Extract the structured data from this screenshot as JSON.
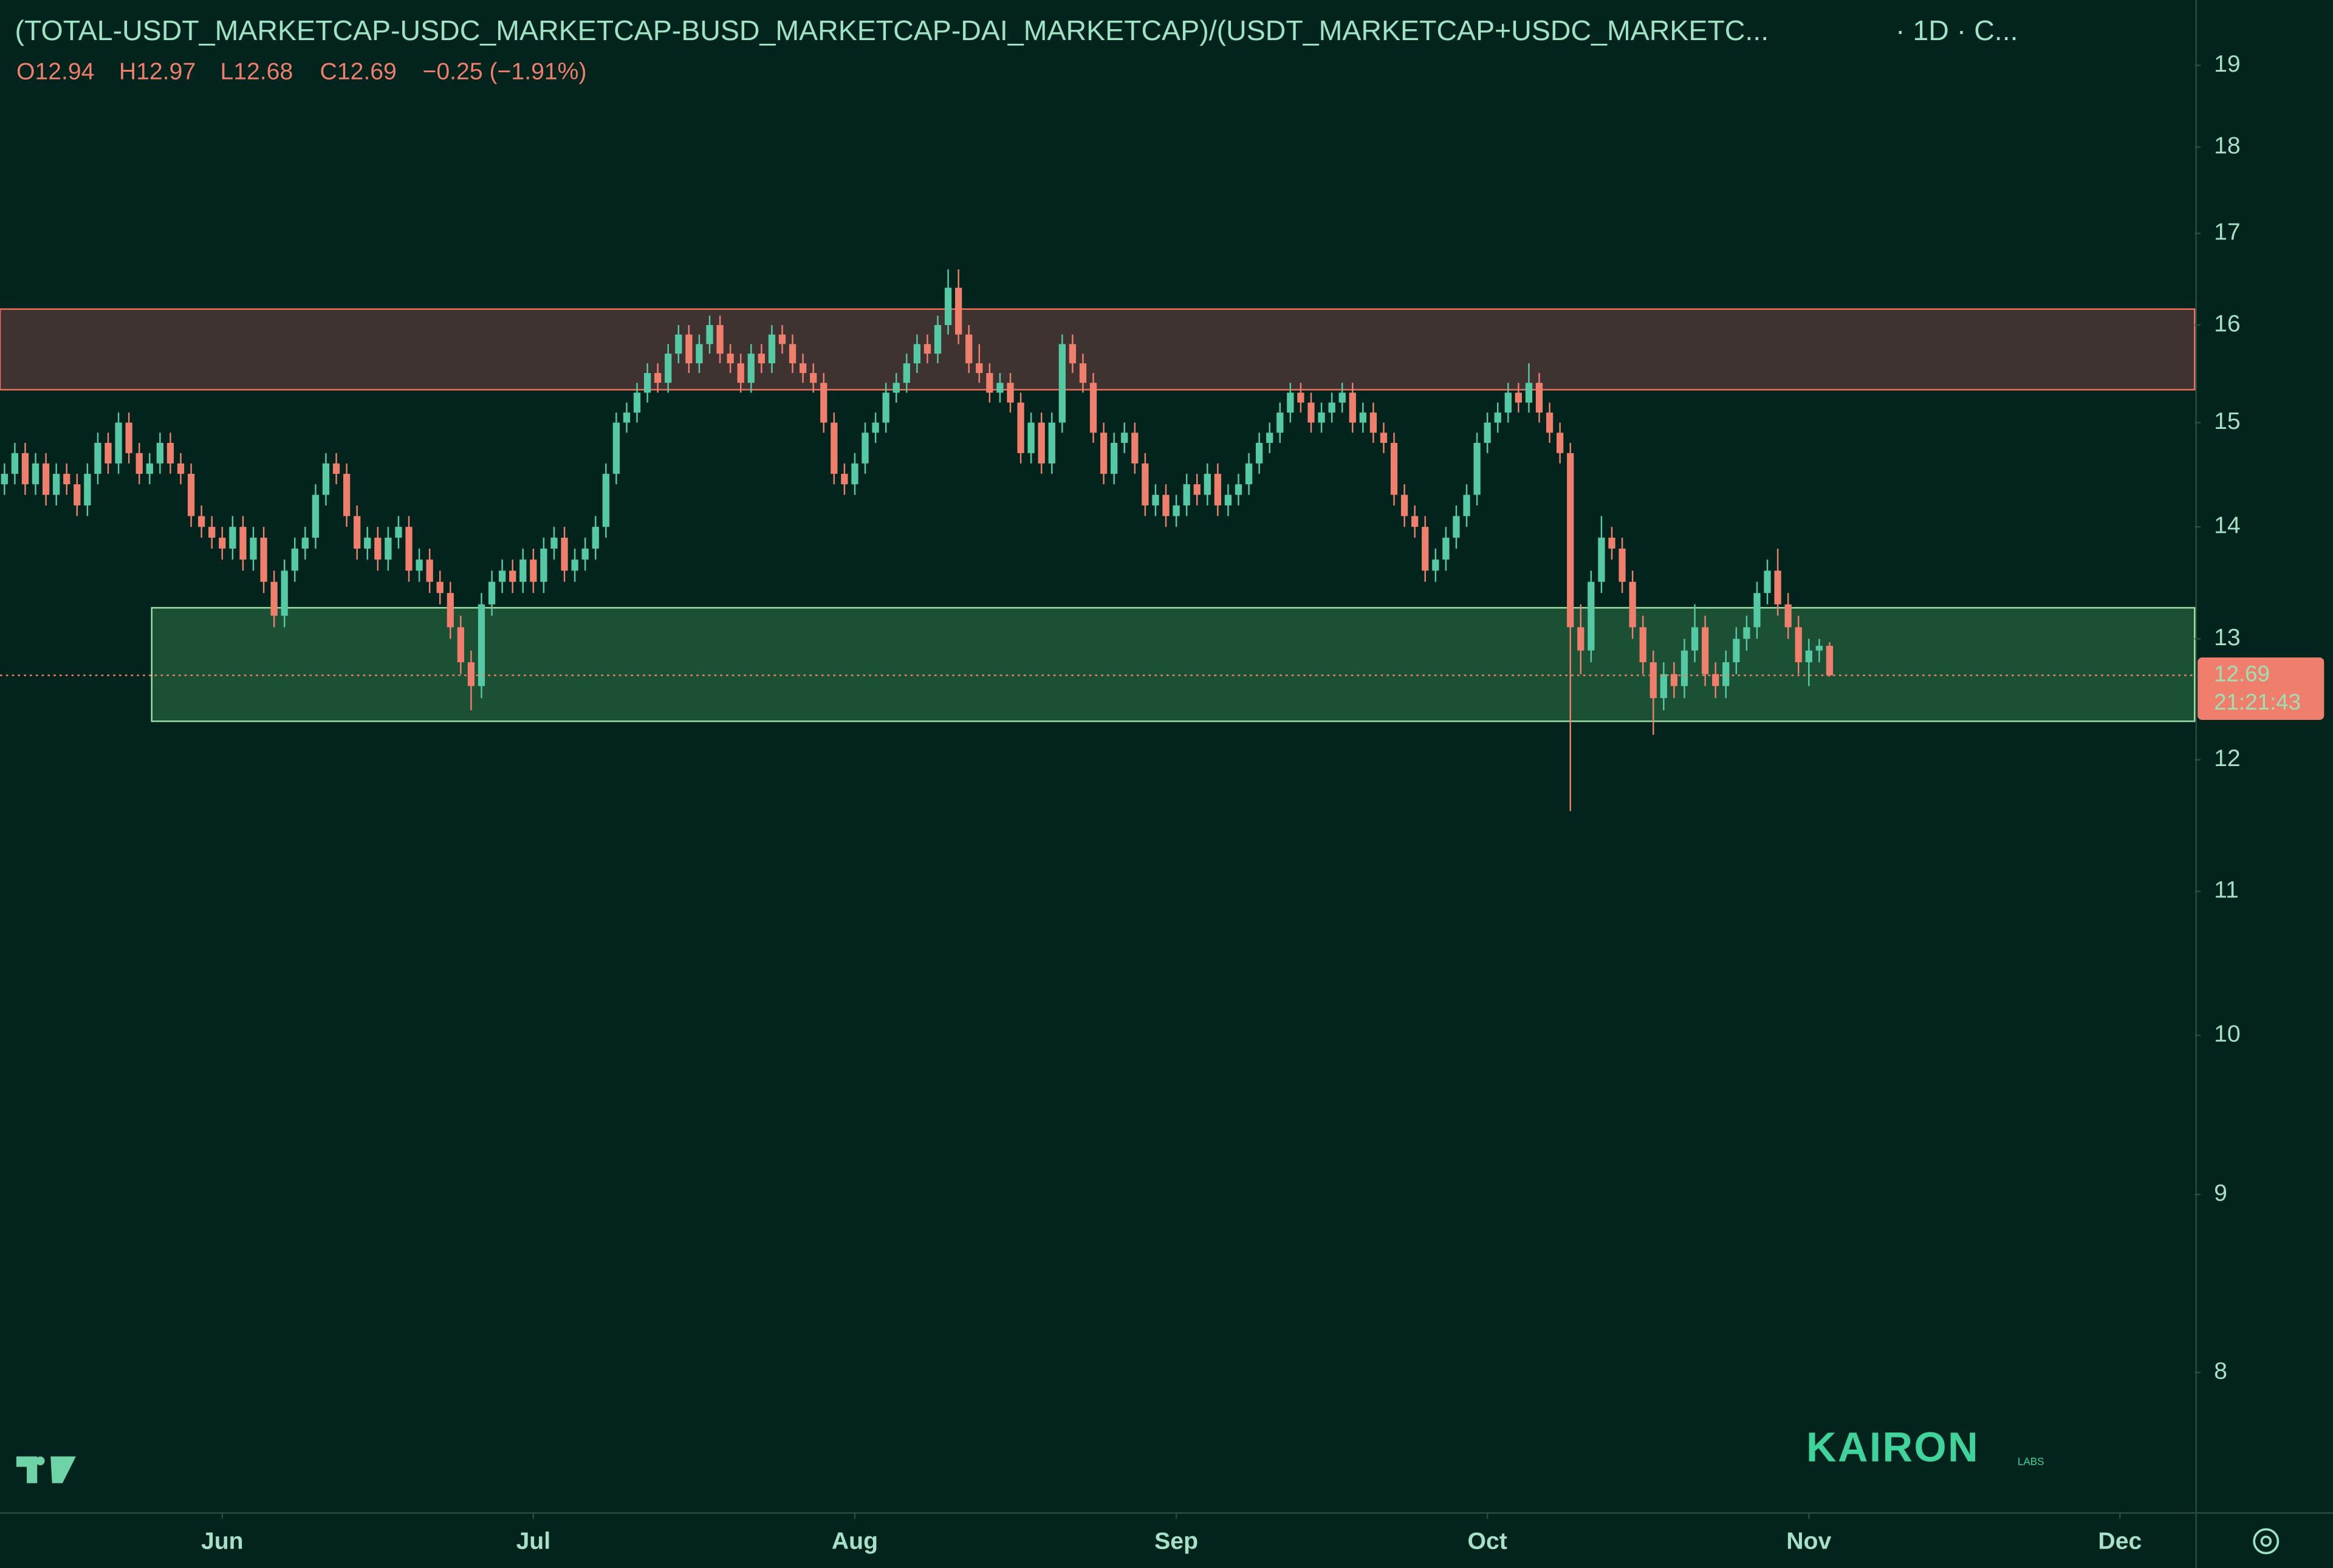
{
  "header": {
    "title": "(TOTAL-USDT_MARKETCAP-USDC_MARKETCAP-BUSD_MARKETCAP-DAI_MARKETCAP)/(USDT_MARKETCAP+USDC_MARKETC...",
    "interval": "· 1D · C...",
    "open": "O12.94",
    "high": "H12.97",
    "low": "L12.68",
    "close": "C12.69",
    "change": "−0.25 (−1.91%)"
  },
  "watermark": {
    "brand": "KAIRON",
    "sub": "LABS"
  },
  "chart_data": {
    "type": "candlestick",
    "log_scale": true,
    "up_color": "#55c9a3",
    "down_color": "#ef7f6c",
    "ylim": [
      7.29,
      19.84
    ],
    "yticks": [
      8,
      9,
      10,
      11,
      12,
      13,
      14,
      15,
      16,
      17,
      18,
      19
    ],
    "xlim": [
      -0.43,
      211.2
    ],
    "xticks": [
      {
        "value": 21,
        "label": "Jun"
      },
      {
        "value": 51,
        "label": "Jul"
      },
      {
        "value": 82,
        "label": "Aug"
      },
      {
        "value": 113,
        "label": "Sep"
      },
      {
        "value": 143,
        "label": "Oct"
      },
      {
        "value": 174,
        "label": "Nov"
      },
      {
        "value": 204,
        "label": "Dec"
      }
    ],
    "zones": [
      {
        "low": 15.33,
        "high": 16.17,
        "start": -0.43,
        "fill": "#3f3332",
        "stroke": "#f0705f"
      },
      {
        "low": 12.31,
        "high": 13.27,
        "start": 14.2,
        "fill": "#1b5034",
        "stroke": "#9be3a8"
      }
    ],
    "last_price": 12.69,
    "countdown": "21:21:43",
    "candles": [
      [
        14.4,
        14.6,
        14.3,
        14.5
      ],
      [
        14.5,
        14.8,
        14.4,
        14.7
      ],
      [
        14.7,
        14.8,
        14.3,
        14.4
      ],
      [
        14.4,
        14.7,
        14.3,
        14.6
      ],
      [
        14.6,
        14.7,
        14.2,
        14.3
      ],
      [
        14.3,
        14.6,
        14.2,
        14.5
      ],
      [
        14.5,
        14.6,
        14.3,
        14.4
      ],
      [
        14.4,
        14.5,
        14.1,
        14.2
      ],
      [
        14.2,
        14.6,
        14.1,
        14.5
      ],
      [
        14.5,
        14.9,
        14.4,
        14.8
      ],
      [
        14.8,
        14.9,
        14.5,
        14.6
      ],
      [
        14.6,
        15.1,
        14.5,
        15.0
      ],
      [
        15.0,
        15.1,
        14.6,
        14.7
      ],
      [
        14.7,
        14.8,
        14.4,
        14.5
      ],
      [
        14.5,
        14.7,
        14.4,
        14.6
      ],
      [
        14.6,
        14.9,
        14.5,
        14.8
      ],
      [
        14.8,
        14.9,
        14.5,
        14.6
      ],
      [
        14.6,
        14.7,
        14.4,
        14.5
      ],
      [
        14.5,
        14.6,
        14.0,
        14.1
      ],
      [
        14.1,
        14.2,
        13.9,
        14.0
      ],
      [
        14.0,
        14.1,
        13.8,
        13.9
      ],
      [
        13.9,
        14.0,
        13.7,
        13.8
      ],
      [
        13.8,
        14.1,
        13.7,
        14.0
      ],
      [
        14.0,
        14.1,
        13.6,
        13.7
      ],
      [
        13.7,
        14.0,
        13.6,
        13.9
      ],
      [
        13.9,
        14.0,
        13.4,
        13.5
      ],
      [
        13.5,
        13.6,
        13.1,
        13.2
      ],
      [
        13.2,
        13.7,
        13.1,
        13.6
      ],
      [
        13.6,
        13.9,
        13.5,
        13.8
      ],
      [
        13.8,
        14.0,
        13.7,
        13.9
      ],
      [
        13.9,
        14.4,
        13.8,
        14.3
      ],
      [
        14.3,
        14.7,
        14.2,
        14.6
      ],
      [
        14.6,
        14.7,
        14.4,
        14.5
      ],
      [
        14.5,
        14.6,
        14.0,
        14.1
      ],
      [
        14.1,
        14.2,
        13.7,
        13.8
      ],
      [
        13.8,
        14.0,
        13.7,
        13.9
      ],
      [
        13.9,
        14.0,
        13.6,
        13.7
      ],
      [
        13.7,
        14.0,
        13.6,
        13.9
      ],
      [
        13.9,
        14.1,
        13.8,
        14.0
      ],
      [
        14.0,
        14.1,
        13.5,
        13.6
      ],
      [
        13.6,
        13.8,
        13.5,
        13.7
      ],
      [
        13.7,
        13.8,
        13.4,
        13.5
      ],
      [
        13.5,
        13.6,
        13.3,
        13.4
      ],
      [
        13.4,
        13.5,
        13.0,
        13.1
      ],
      [
        13.1,
        13.2,
        12.7,
        12.8
      ],
      [
        12.8,
        12.9,
        12.4,
        12.6
      ],
      [
        12.6,
        13.4,
        12.5,
        13.3
      ],
      [
        13.3,
        13.6,
        13.2,
        13.5
      ],
      [
        13.5,
        13.7,
        13.4,
        13.6
      ],
      [
        13.6,
        13.7,
        13.4,
        13.5
      ],
      [
        13.5,
        13.8,
        13.4,
        13.7
      ],
      [
        13.7,
        13.8,
        13.4,
        13.5
      ],
      [
        13.5,
        13.9,
        13.4,
        13.8
      ],
      [
        13.8,
        14.0,
        13.7,
        13.9
      ],
      [
        13.9,
        14.0,
        13.5,
        13.6
      ],
      [
        13.6,
        13.8,
        13.5,
        13.7
      ],
      [
        13.7,
        13.9,
        13.6,
        13.8
      ],
      [
        13.8,
        14.1,
        13.7,
        14.0
      ],
      [
        14.0,
        14.6,
        13.9,
        14.5
      ],
      [
        14.5,
        15.1,
        14.4,
        15.0
      ],
      [
        15.0,
        15.2,
        14.9,
        15.1
      ],
      [
        15.1,
        15.4,
        15.0,
        15.3
      ],
      [
        15.3,
        15.6,
        15.2,
        15.5
      ],
      [
        15.5,
        15.6,
        15.3,
        15.4
      ],
      [
        15.4,
        15.8,
        15.3,
        15.7
      ],
      [
        15.7,
        16.0,
        15.6,
        15.9
      ],
      [
        15.9,
        16.0,
        15.5,
        15.6
      ],
      [
        15.6,
        15.9,
        15.5,
        15.8
      ],
      [
        15.8,
        16.1,
        15.7,
        16.0
      ],
      [
        16.0,
        16.1,
        15.6,
        15.7
      ],
      [
        15.7,
        15.8,
        15.5,
        15.6
      ],
      [
        15.6,
        15.7,
        15.3,
        15.4
      ],
      [
        15.4,
        15.8,
        15.3,
        15.7
      ],
      [
        15.7,
        15.8,
        15.5,
        15.6
      ],
      [
        15.6,
        16.0,
        15.5,
        15.9
      ],
      [
        15.9,
        16.0,
        15.7,
        15.8
      ],
      [
        15.8,
        15.9,
        15.5,
        15.6
      ],
      [
        15.6,
        15.7,
        15.4,
        15.5
      ],
      [
        15.5,
        15.6,
        15.3,
        15.4
      ],
      [
        15.4,
        15.5,
        14.9,
        15.0
      ],
      [
        15.0,
        15.1,
        14.4,
        14.5
      ],
      [
        14.5,
        14.6,
        14.3,
        14.4
      ],
      [
        14.4,
        14.7,
        14.3,
        14.6
      ],
      [
        14.6,
        15.0,
        14.5,
        14.9
      ],
      [
        14.9,
        15.1,
        14.8,
        15.0
      ],
      [
        15.0,
        15.4,
        14.9,
        15.3
      ],
      [
        15.3,
        15.5,
        15.2,
        15.4
      ],
      [
        15.4,
        15.7,
        15.3,
        15.6
      ],
      [
        15.6,
        15.9,
        15.5,
        15.8
      ],
      [
        15.8,
        15.9,
        15.6,
        15.7
      ],
      [
        15.7,
        16.1,
        15.6,
        16.0
      ],
      [
        16.0,
        16.6,
        15.9,
        16.4
      ],
      [
        16.4,
        16.6,
        15.8,
        15.9
      ],
      [
        15.9,
        16.0,
        15.5,
        15.6
      ],
      [
        15.6,
        15.8,
        15.4,
        15.5
      ],
      [
        15.5,
        15.6,
        15.2,
        15.3
      ],
      [
        15.3,
        15.5,
        15.2,
        15.4
      ],
      [
        15.4,
        15.5,
        15.1,
        15.2
      ],
      [
        15.2,
        15.3,
        14.6,
        14.7
      ],
      [
        14.7,
        15.1,
        14.6,
        15.0
      ],
      [
        15.0,
        15.1,
        14.5,
        14.6
      ],
      [
        14.6,
        15.1,
        14.5,
        15.0
      ],
      [
        15.0,
        15.9,
        14.9,
        15.8
      ],
      [
        15.8,
        15.9,
        15.5,
        15.6
      ],
      [
        15.6,
        15.7,
        15.3,
        15.4
      ],
      [
        15.4,
        15.5,
        14.8,
        14.9
      ],
      [
        14.9,
        15.0,
        14.4,
        14.5
      ],
      [
        14.5,
        14.9,
        14.4,
        14.8
      ],
      [
        14.8,
        15.0,
        14.7,
        14.9
      ],
      [
        14.9,
        15.0,
        14.5,
        14.6
      ],
      [
        14.6,
        14.7,
        14.1,
        14.2
      ],
      [
        14.2,
        14.4,
        14.1,
        14.3
      ],
      [
        14.3,
        14.4,
        14.0,
        14.1
      ],
      [
        14.1,
        14.3,
        14.0,
        14.2
      ],
      [
        14.2,
        14.5,
        14.1,
        14.4
      ],
      [
        14.4,
        14.5,
        14.2,
        14.3
      ],
      [
        14.3,
        14.6,
        14.2,
        14.5
      ],
      [
        14.5,
        14.6,
        14.1,
        14.2
      ],
      [
        14.2,
        14.4,
        14.1,
        14.3
      ],
      [
        14.3,
        14.5,
        14.2,
        14.4
      ],
      [
        14.4,
        14.7,
        14.3,
        14.6
      ],
      [
        14.6,
        14.9,
        14.5,
        14.8
      ],
      [
        14.8,
        15.0,
        14.7,
        14.9
      ],
      [
        14.9,
        15.2,
        14.8,
        15.1
      ],
      [
        15.1,
        15.4,
        15.0,
        15.3
      ],
      [
        15.3,
        15.4,
        15.1,
        15.2
      ],
      [
        15.2,
        15.3,
        14.9,
        15.0
      ],
      [
        15.0,
        15.2,
        14.9,
        15.1
      ],
      [
        15.1,
        15.3,
        15.0,
        15.2
      ],
      [
        15.2,
        15.4,
        15.1,
        15.3
      ],
      [
        15.3,
        15.4,
        14.9,
        15.0
      ],
      [
        15.0,
        15.2,
        14.9,
        15.1
      ],
      [
        15.1,
        15.2,
        14.8,
        14.9
      ],
      [
        14.9,
        15.0,
        14.7,
        14.8
      ],
      [
        14.8,
        14.9,
        14.2,
        14.3
      ],
      [
        14.3,
        14.4,
        14.0,
        14.1
      ],
      [
        14.1,
        14.2,
        13.9,
        14.0
      ],
      [
        14.0,
        14.1,
        13.5,
        13.6
      ],
      [
        13.6,
        13.8,
        13.5,
        13.7
      ],
      [
        13.7,
        14.0,
        13.6,
        13.9
      ],
      [
        13.9,
        14.2,
        13.8,
        14.1
      ],
      [
        14.1,
        14.4,
        14.0,
        14.3
      ],
      [
        14.3,
        14.9,
        14.2,
        14.8
      ],
      [
        14.8,
        15.1,
        14.7,
        15.0
      ],
      [
        15.0,
        15.2,
        14.9,
        15.1
      ],
      [
        15.1,
        15.4,
        15.0,
        15.3
      ],
      [
        15.3,
        15.4,
        15.1,
        15.2
      ],
      [
        15.2,
        15.6,
        15.1,
        15.4
      ],
      [
        15.4,
        15.5,
        15.0,
        15.1
      ],
      [
        15.1,
        15.2,
        14.8,
        14.9
      ],
      [
        14.9,
        15.0,
        14.6,
        14.7
      ],
      [
        14.7,
        14.8,
        11.6,
        13.1
      ],
      [
        13.1,
        13.3,
        12.7,
        12.9
      ],
      [
        12.9,
        13.6,
        12.8,
        13.5
      ],
      [
        13.5,
        14.1,
        13.4,
        13.9
      ],
      [
        13.9,
        14.0,
        13.7,
        13.8
      ],
      [
        13.8,
        13.9,
        13.4,
        13.5
      ],
      [
        13.5,
        13.6,
        13.0,
        13.1
      ],
      [
        13.1,
        13.2,
        12.7,
        12.8
      ],
      [
        12.8,
        12.9,
        12.2,
        12.5
      ],
      [
        12.5,
        12.8,
        12.4,
        12.7
      ],
      [
        12.7,
        12.8,
        12.5,
        12.6
      ],
      [
        12.6,
        13.0,
        12.5,
        12.9
      ],
      [
        12.9,
        13.3,
        12.8,
        13.1
      ],
      [
        13.1,
        13.2,
        12.6,
        12.7
      ],
      [
        12.7,
        12.8,
        12.5,
        12.6
      ],
      [
        12.6,
        12.9,
        12.5,
        12.8
      ],
      [
        12.8,
        13.1,
        12.7,
        13.0
      ],
      [
        13.0,
        13.2,
        12.9,
        13.1
      ],
      [
        13.1,
        13.5,
        13.0,
        13.4
      ],
      [
        13.4,
        13.7,
        13.3,
        13.6
      ],
      [
        13.6,
        13.8,
        13.2,
        13.3
      ],
      [
        13.3,
        13.4,
        13.0,
        13.1
      ],
      [
        13.1,
        13.2,
        12.7,
        12.8
      ],
      [
        12.8,
        13.0,
        12.6,
        12.9
      ],
      [
        12.9,
        13.0,
        12.8,
        12.94
      ],
      [
        12.94,
        12.97,
        12.68,
        12.69
      ]
    ]
  }
}
